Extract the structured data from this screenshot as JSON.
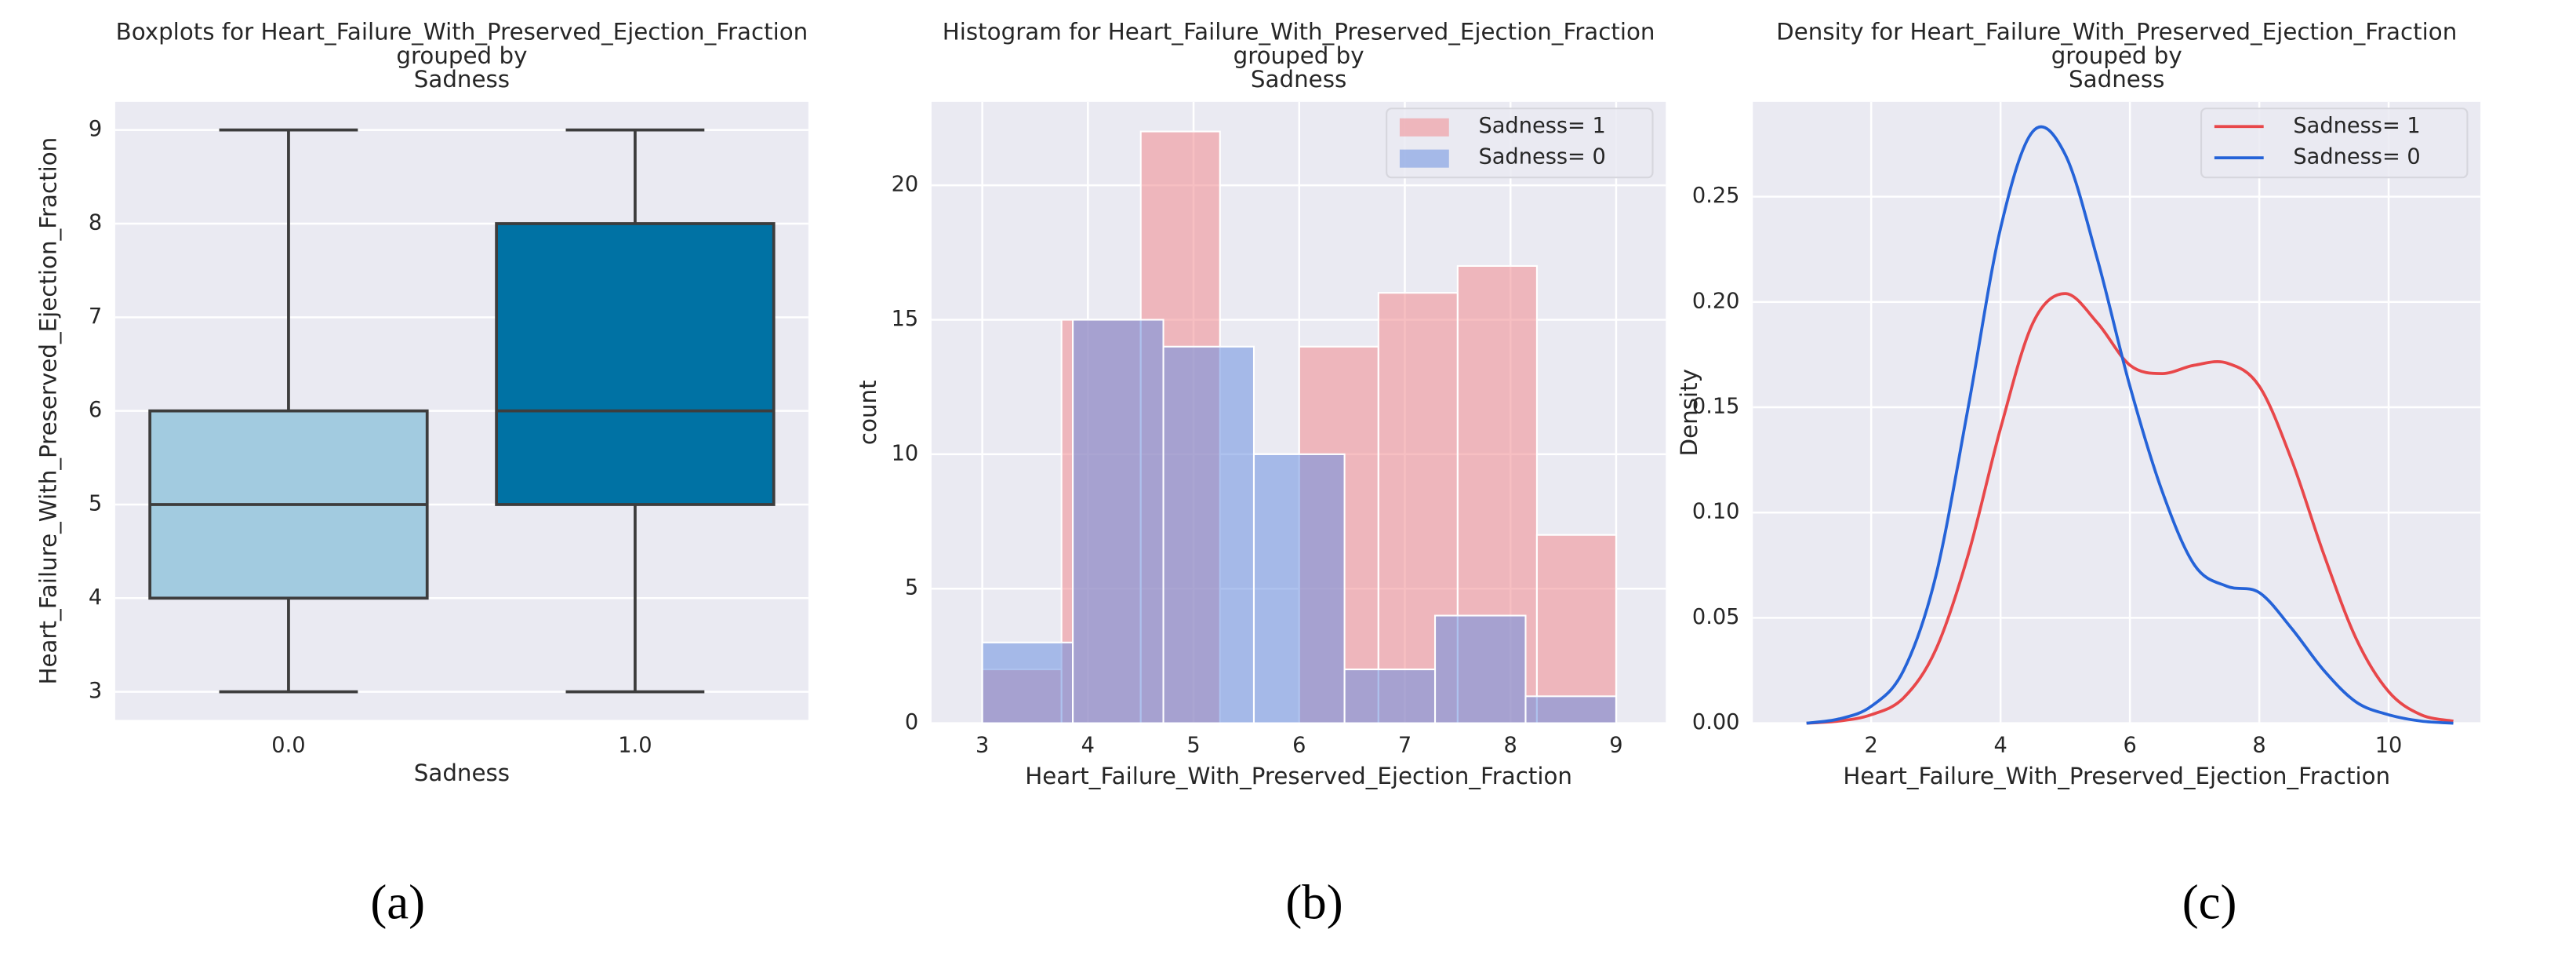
{
  "chart_data": [
    {
      "type": "box",
      "title": [
        "Boxplots for Heart_Failure_With_Preserved_Ejection_Fraction",
        "grouped by",
        "Sadness"
      ],
      "xlabel": "Sadness",
      "ylabel": "Heart_Failure_With_Preserved_Ejection_Fraction",
      "categories": [
        "0.0",
        "1.0"
      ],
      "boxes": [
        {
          "whislo": 3,
          "q1": 4,
          "med": 5,
          "q3": 6,
          "whishi": 9,
          "color": "#a2cbe0"
        },
        {
          "whislo": 3,
          "q1": 5,
          "med": 6,
          "q3": 8,
          "whishi": 9,
          "color": "#0072a4"
        }
      ],
      "ylim": [
        2.7,
        9.3
      ],
      "yticks": [
        3,
        4,
        5,
        6,
        7,
        8,
        9
      ],
      "grid": "y",
      "caption": "(a)"
    },
    {
      "type": "histogram",
      "title": [
        "Histogram for Heart_Failure_With_Preserved_Ejection_Fraction",
        "grouped by",
        "Sadness"
      ],
      "xlabel": "Heart_Failure_With_Preserved_Ejection_Fraction",
      "ylabel": "count",
      "series": [
        {
          "name": "Sadness= 1",
          "color": "#f08a8f",
          "bins": [
            3,
            3.75,
            4.5,
            5.25,
            6,
            6.75,
            7.5,
            8.25,
            9
          ],
          "values": [
            2,
            15,
            22,
            0,
            14,
            16,
            17,
            7
          ]
        },
        {
          "name": "Sadness= 0",
          "color": "#6b8fe0",
          "bins": [
            3,
            3.857,
            4.714,
            5.571,
            6.429,
            7.286,
            8.143,
            9
          ],
          "values": [
            3,
            15,
            14,
            10,
            2,
            4,
            1
          ]
        }
      ],
      "xlim": [
        2.52,
        9.47
      ],
      "ylim": [
        0,
        23.1
      ],
      "xticks": [
        3,
        4,
        5,
        6,
        7,
        8,
        9
      ],
      "yticks": [
        0,
        5,
        10,
        15,
        20
      ],
      "grid": "both",
      "legend": "upper-right",
      "caption": "(b)"
    },
    {
      "type": "line",
      "title": [
        "Density for Heart_Failure_With_Preserved_Ejection_Fraction",
        "grouped by",
        "Sadness"
      ],
      "xlabel": "Heart_Failure_With_Preserved_Ejection_Fraction",
      "ylabel": "Density",
      "x": [
        1,
        1.5,
        2,
        2.5,
        3,
        3.5,
        4,
        4.5,
        5,
        5.5,
        6,
        6.5,
        7,
        7.5,
        8,
        8.5,
        9,
        9.5,
        10,
        10.5,
        11
      ],
      "series": [
        {
          "name": "Sadness= 1",
          "color": "#e8474a",
          "values": [
            0,
            0.001,
            0.004,
            0.012,
            0.035,
            0.08,
            0.14,
            0.19,
            0.204,
            0.19,
            0.17,
            0.166,
            0.17,
            0.171,
            0.16,
            0.125,
            0.08,
            0.04,
            0.015,
            0.004,
            0.001
          ]
        },
        {
          "name": "Sadness= 0",
          "color": "#2563d8",
          "values": [
            0,
            0.002,
            0.008,
            0.025,
            0.07,
            0.15,
            0.235,
            0.281,
            0.27,
            0.22,
            0.16,
            0.11,
            0.075,
            0.065,
            0.062,
            0.045,
            0.025,
            0.01,
            0.004,
            0.001,
            0
          ]
        }
      ],
      "xlim": [
        0.17,
        11.42
      ],
      "ylim": [
        0,
        0.295
      ],
      "xticks": [
        2,
        4,
        6,
        8,
        10
      ],
      "yticks": [
        {
          "value": 0,
          "label": "0.00"
        },
        {
          "value": 0.05,
          "label": "0.05"
        },
        {
          "value": 0.1,
          "label": "0.10"
        },
        {
          "value": 0.15,
          "label": "0.15"
        },
        {
          "value": 0.2,
          "label": "0.20"
        },
        {
          "value": 0.25,
          "label": "0.25"
        }
      ],
      "grid": "both",
      "legend": "upper-right",
      "caption": "(c)"
    }
  ]
}
